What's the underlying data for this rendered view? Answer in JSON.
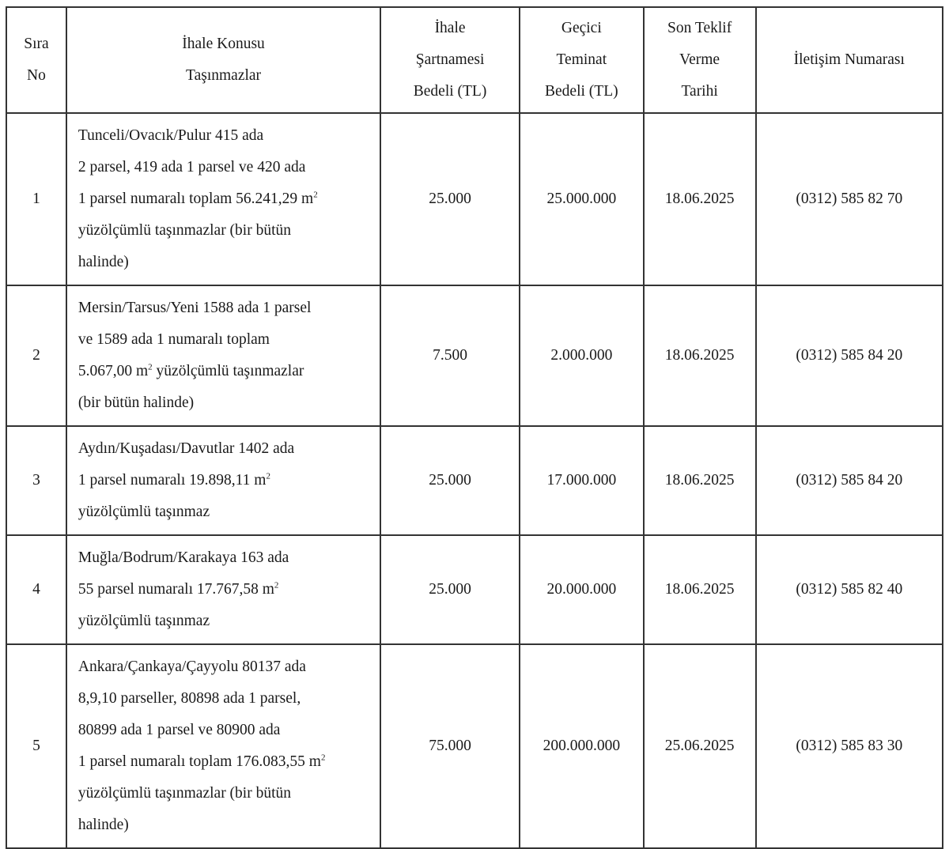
{
  "headers": {
    "no": [
      "Sıra",
      "No"
    ],
    "subject": [
      "İhale Konusu",
      "Taşınmazlar"
    ],
    "spec_fee": [
      "İhale",
      "Şartnamesi",
      "Bedeli (TL)"
    ],
    "deposit": [
      "Geçici",
      "Teminat",
      "Bedeli (TL)"
    ],
    "deadline": [
      "Son Teklif",
      "Verme",
      "Tarihi"
    ],
    "contact": [
      "İletişim Numarası"
    ]
  },
  "rows": [
    {
      "no": "1",
      "subject": [
        "Tunceli/Ovacık/Pulur 415 ada",
        "2 parsel, 419 ada 1 parsel ve 420 ada",
        "1 parsel numaralı toplam 56.241,29 m",
        "yüzölçümlü taşınmazlar (bir bütün",
        "halinde)"
      ],
      "sup_line": 2,
      "spec_fee": "25.000",
      "deposit": "25.000.000",
      "deadline": "18.06.2025",
      "contact": "(0312) 585 82 70"
    },
    {
      "no": "2",
      "subject": [
        "Mersin/Tarsus/Yeni 1588 ada 1 parsel",
        "ve 1589 ada 1 numaralı toplam",
        "5.067,00 m",
        "(bir bütün halinde)"
      ],
      "sup_line": 2,
      "sup_after": " yüzölçümlü taşınmazlar",
      "spec_fee": "7.500",
      "deposit": "2.000.000",
      "deadline": "18.06.2025",
      "contact": "(0312) 585 84 20"
    },
    {
      "no": "3",
      "subject": [
        "Aydın/Kuşadası/Davutlar 1402 ada",
        "1 parsel numaralı 19.898,11 m",
        "yüzölçümlü taşınmaz"
      ],
      "sup_line": 1,
      "spec_fee": "25.000",
      "deposit": "17.000.000",
      "deadline": "18.06.2025",
      "contact": "(0312) 585 84 20"
    },
    {
      "no": "4",
      "subject": [
        "Muğla/Bodrum/Karakaya 163 ada",
        "55 parsel numaralı 17.767,58 m",
        "yüzölçümlü taşınmaz"
      ],
      "sup_line": 1,
      "spec_fee": "25.000",
      "deposit": "20.000.000",
      "deadline": "18.06.2025",
      "contact": "(0312) 585 82 40"
    },
    {
      "no": "5",
      "subject": [
        "Ankara/Çankaya/Çayyolu 80137 ada",
        "8,9,10 parseller, 80898 ada 1 parsel,",
        "80899 ada 1 parsel ve 80900 ada",
        "1 parsel numaralı toplam 176.083,55 m",
        "yüzölçümlü taşınmazlar (bir bütün",
        "halinde)"
      ],
      "sup_line": 3,
      "spec_fee": "75.000",
      "deposit": "200.000.000",
      "deadline": "25.06.2025",
      "contact": "(0312) 585 83 30"
    }
  ],
  "superscript": "2"
}
